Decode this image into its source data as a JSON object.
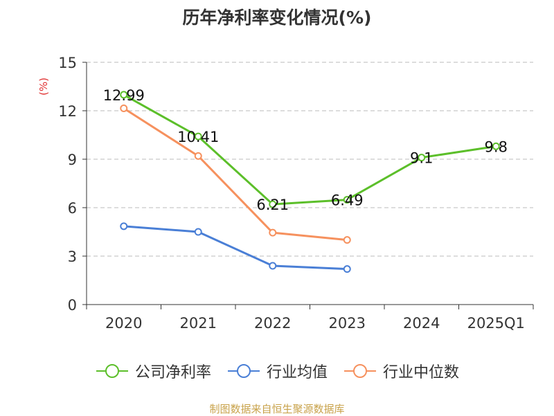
{
  "title": "历年净利率变化情况(%)",
  "source": "制图数据来自恒生聚源数据库",
  "colors": {
    "company": "#5cbf2a",
    "industry_avg": "#4a7fd6",
    "industry_median": "#f6915e",
    "grid": "#bbbbbb",
    "axis": "#333333",
    "unit": "#e03030"
  },
  "chart_data": {
    "type": "line",
    "ylabel": "(%)",
    "categories": [
      "2020",
      "2021",
      "2022",
      "2023",
      "2024",
      "2025Q1"
    ],
    "ylim": [
      0,
      15
    ],
    "yticks": [
      0,
      3,
      6,
      9,
      12,
      15
    ],
    "grid": true,
    "legend_position": "bottom",
    "series": [
      {
        "name": "公司净利率",
        "color": "#5cbf2a",
        "values": [
          12.99,
          10.41,
          6.21,
          6.49,
          9.1,
          9.8
        ],
        "labels": [
          "12.99",
          "10.41",
          "6.21",
          "6.49",
          "9.1",
          "9.8"
        ]
      },
      {
        "name": "行业均值",
        "color": "#4a7fd6",
        "values": [
          4.85,
          4.5,
          2.4,
          2.2,
          null,
          null
        ]
      },
      {
        "name": "行业中位数",
        "color": "#f6915e",
        "values": [
          12.15,
          9.2,
          4.45,
          4.0,
          null,
          null
        ]
      }
    ]
  }
}
